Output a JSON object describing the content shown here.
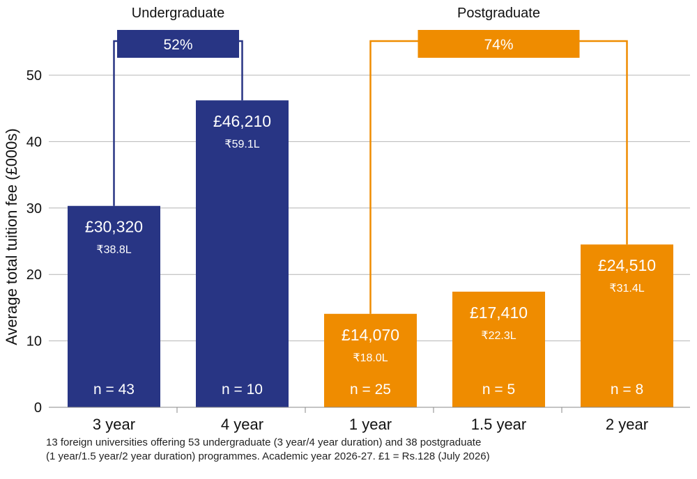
{
  "chart_data": {
    "type": "bar",
    "ylabel": "Average total tuition fee (£000s)",
    "ylim": [
      0,
      50
    ],
    "yticks": [
      0,
      10,
      20,
      30,
      40,
      50
    ],
    "grid": true,
    "groups": [
      {
        "name": "Undergraduate",
        "color": "#283584",
        "change_label": "52%",
        "bars": [
          0,
          1
        ]
      },
      {
        "name": "Postgraduate",
        "color": "#EF8C00",
        "change_label": "74%",
        "bars": [
          2,
          4
        ]
      }
    ],
    "categories": [
      "3 year",
      "4 year",
      "1 year",
      "1.5 year",
      "2 year"
    ],
    "values": [
      30.32,
      46.21,
      14.07,
      17.41,
      24.51
    ],
    "value_labels": [
      "£30,320",
      "£46,210",
      "£14,070",
      "£17,410",
      "£24,510"
    ],
    "inr_labels": [
      "₹38.8L",
      "₹59.1L",
      "₹18.0L",
      "₹22.3L",
      "₹31.4L"
    ],
    "n_labels": [
      "n = 43",
      "n = 10",
      "n = 25",
      "n = 5",
      "n = 8"
    ],
    "bar_group": [
      "Undergraduate",
      "Undergraduate",
      "Postgraduate",
      "Postgraduate",
      "Postgraduate"
    ]
  },
  "footnote": {
    "line1": "13 foreign universities offering 53 undergraduate (3 year/4 year duration) and 38 postgraduate",
    "line2": "(1 year/1.5 year/2 year duration) programmes. Academic year 2026-27. £1 = Rs.128 (July 2026)"
  }
}
